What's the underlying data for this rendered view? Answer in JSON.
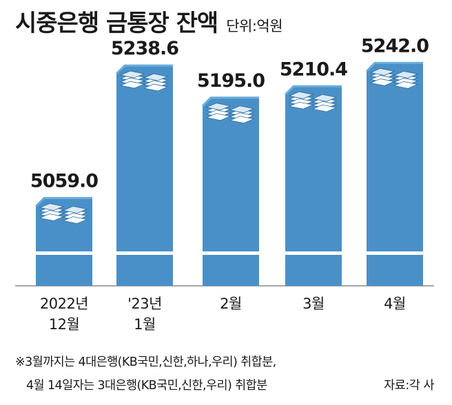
{
  "title": "시중은행 금통장 잔액",
  "unit": "단위:억원",
  "chart_data": {
    "type": "bar",
    "title": "시중은행 금통장 잔액",
    "categories": [
      {
        "line1": "2022년",
        "line2": "12월"
      },
      {
        "line1": "'23년",
        "line2": "1월"
      },
      {
        "line1": "2월",
        "line2": ""
      },
      {
        "line1": "3월",
        "line2": ""
      },
      {
        "line1": "4월",
        "line2": ""
      }
    ],
    "values": [
      5059.0,
      5238.6,
      5195.0,
      5210.4,
      5242.0
    ],
    "value_labels": [
      "5059.0",
      "5238.6",
      "5195.0",
      "5210.4",
      "5242.0"
    ],
    "xlabel": "",
    "ylabel": "",
    "ylim": [
      4940,
      5290
    ],
    "bar_color": "#4a90c8",
    "bar_top_color": "#6aaedb"
  },
  "notes": [
    "※3월까지는 4대은행(KB국민,신한,하나,우리) 취합분,",
    "4월 14일자는 3대은행(KB국민,신한,우리) 취합분"
  ],
  "source": "자료:각 사"
}
